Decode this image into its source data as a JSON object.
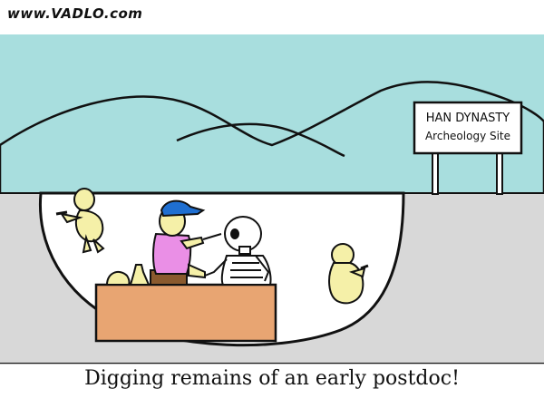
{
  "watermark": "www.VADLO.com",
  "sign": {
    "line1": "HAN DYNASTY",
    "line2": "Archeology Site"
  },
  "caption": "Digging remains of an early postdoc!",
  "colors": {
    "sky": "#a8dede",
    "hills": "#a8dede",
    "ground": "#d8d8d8",
    "pit": "#ffffff",
    "table": "#e8a572",
    "shirt": "#ea8fe6",
    "cap": "#1f6fd1",
    "skin": "#f5f0a8",
    "outline": "#111111"
  }
}
